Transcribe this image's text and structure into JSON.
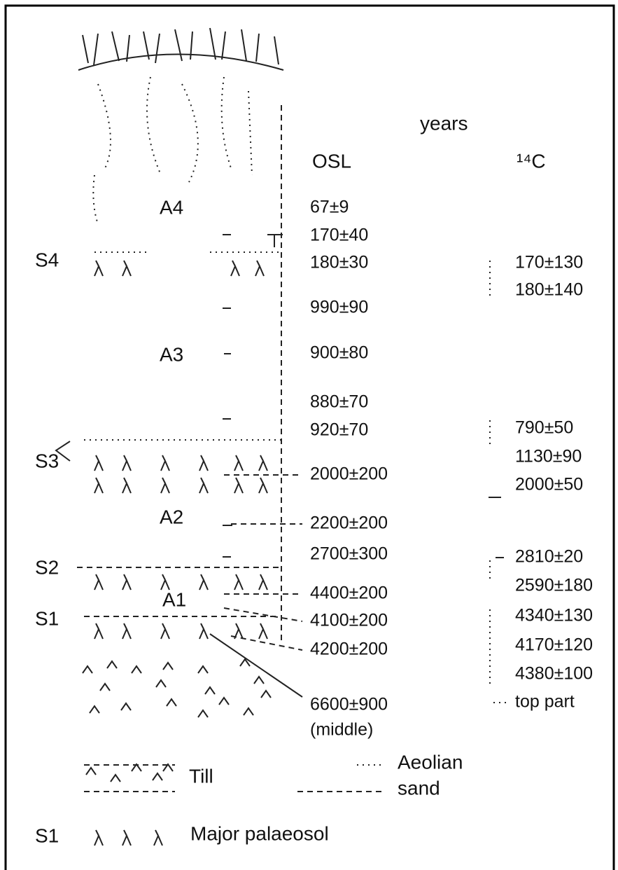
{
  "header": {
    "years": "years",
    "osl": "OSL",
    "c14": "¹⁴C"
  },
  "units": [
    "A4",
    "A3",
    "A2",
    "A1"
  ],
  "soils": [
    "S4",
    "S3",
    "S2",
    "S1"
  ],
  "osl_dates": [
    "67±9",
    "170±40",
    "180±30",
    "990±90",
    "900±80",
    "880±70",
    "920±70",
    "2000±200",
    "2200±200",
    "2700±300",
    "4400±200",
    "4100±200",
    "4200±200",
    "6600±900",
    "(middle)"
  ],
  "c14_dates": [
    "170±130",
    "180±140",
    "790±50",
    "1130±90",
    "2000±50",
    "2810±20",
    "2590±180",
    "4340±130",
    "4170±120",
    "4380±100",
    "top part"
  ],
  "legend": {
    "till": "Till",
    "aeolian": "Aeolian",
    "sand": "sand",
    "soil_code": "S1",
    "palaeosol": "Major palaeosol"
  }
}
